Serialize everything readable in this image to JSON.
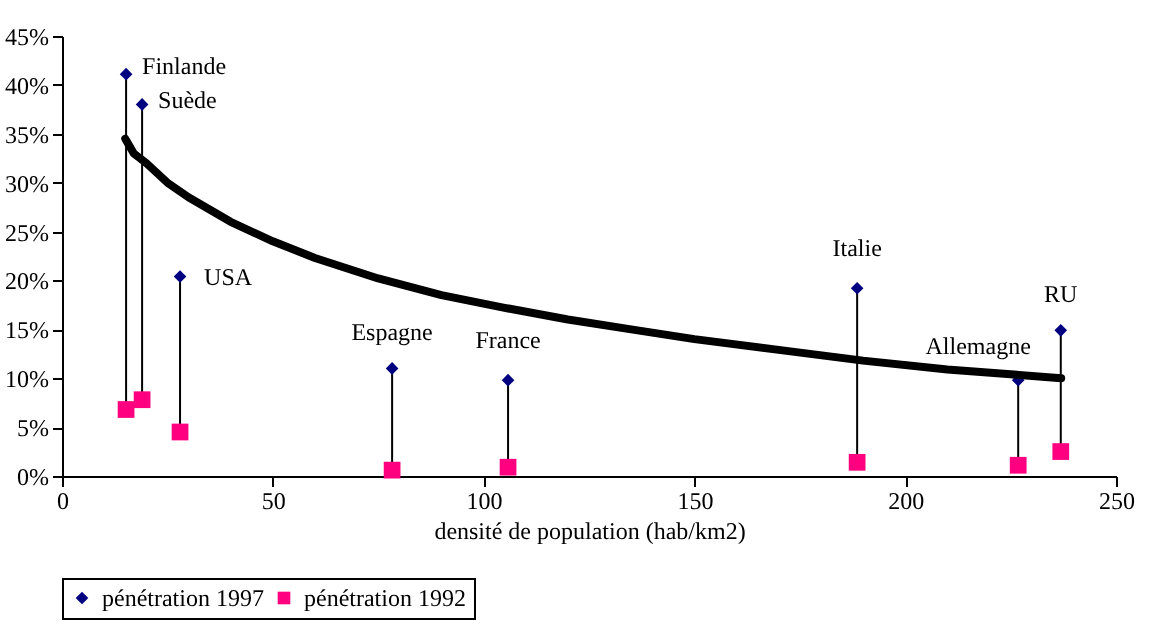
{
  "chart_data": {
    "type": "scatter",
    "xlabel": "densité de population (hab/km2)",
    "xlim": [
      0,
      250
    ],
    "xticks": [
      0,
      50,
      100,
      150,
      200,
      250
    ],
    "ylim": [
      0,
      45
    ],
    "yticks": [
      {
        "value": 0,
        "label": "0%"
      },
      {
        "value": 5,
        "label": "5%"
      },
      {
        "value": 10,
        "label": "10%"
      },
      {
        "value": 15,
        "label": "15%"
      },
      {
        "value": 20,
        "label": "20%"
      },
      {
        "value": 25,
        "label": "25%"
      },
      {
        "value": 30,
        "label": "30%"
      },
      {
        "value": 35,
        "label": "35%"
      },
      {
        "value": 40,
        "label": "40%"
      },
      {
        "value": 45,
        "label": "45%"
      }
    ],
    "grid": false,
    "legend": "bottom",
    "series": [
      {
        "name": "pénétration 1997",
        "marker": "diamond",
        "color": "#000080",
        "x": [
          15.2,
          19,
          28,
          78.3,
          105.8,
          188.6,
          226.8,
          236.9
        ],
        "values": [
          41.1,
          38,
          20.4,
          11,
          9.8,
          19.2,
          9.8,
          14.9
        ]
      },
      {
        "name": "pénétration 1992",
        "marker": "square",
        "color": "#ff0080",
        "x": [
          15.2,
          19,
          28,
          78.3,
          105.8,
          188.6,
          226.8,
          236.9
        ],
        "values": [
          6.8,
          7.8,
          4.5,
          0.6,
          0.9,
          1.4,
          1.1,
          2.5
        ]
      },
      {
        "type": "line",
        "marker": "none",
        "color": "#000000",
        "x": [
          15,
          17,
          20,
          25,
          30,
          40,
          50,
          60,
          75,
          90,
          105,
          120,
          135,
          150,
          170,
          190,
          210,
          225,
          237
        ],
        "values": [
          34.5,
          33,
          32,
          30,
          28.5,
          26,
          24,
          22.3,
          20.2,
          18.5,
          17.2,
          16,
          15,
          14,
          12.9,
          11.8,
          10.9,
          10.4,
          10
        ]
      }
    ],
    "annotations": [
      {
        "text": "Finlande",
        "x": 15.2,
        "y": 41.1
      },
      {
        "text": "Suède",
        "x": 19,
        "y": 38
      },
      {
        "text": "USA",
        "x": 28,
        "y": 20.4
      },
      {
        "text": "Espagne",
        "x": 78.3,
        "y": 11
      },
      {
        "text": "France",
        "x": 105.8,
        "y": 9.8
      },
      {
        "text": "Italie",
        "x": 188.6,
        "y": 19.2
      },
      {
        "text": "Allemagne",
        "x": 226.8,
        "y": 9.8
      },
      {
        "text": "RU",
        "x": 236.9,
        "y": 14.9
      }
    ]
  }
}
